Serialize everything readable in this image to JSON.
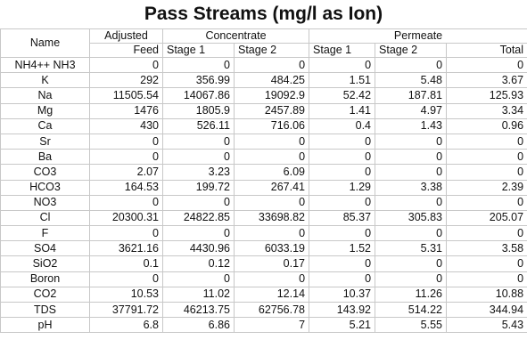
{
  "title": "Pass Streams (mg/l as Ion)",
  "table": {
    "header_top": [
      "Name",
      "Adjusted",
      "Concentrate",
      "Permeate"
    ],
    "header_sub": [
      "Feed",
      "Stage 1",
      "Stage 2",
      "Stage 1",
      "Stage 2",
      "Total"
    ],
    "rows": [
      [
        "NH4++ NH3",
        "0",
        "0",
        "0",
        "0",
        "0",
        "0"
      ],
      [
        "K",
        "292",
        "356.99",
        "484.25",
        "1.51",
        "5.48",
        "3.67"
      ],
      [
        "Na",
        "11505.54",
        "14067.86",
        "19092.9",
        "52.42",
        "187.81",
        "125.93"
      ],
      [
        "Mg",
        "1476",
        "1805.9",
        "2457.89",
        "1.41",
        "4.97",
        "3.34"
      ],
      [
        "Ca",
        "430",
        "526.11",
        "716.06",
        "0.4",
        "1.43",
        "0.96"
      ],
      [
        "Sr",
        "0",
        "0",
        "0",
        "0",
        "0",
        "0"
      ],
      [
        "Ba",
        "0",
        "0",
        "0",
        "0",
        "0",
        "0"
      ],
      [
        "CO3",
        "2.07",
        "3.23",
        "6.09",
        "0",
        "0",
        "0"
      ],
      [
        "HCO3",
        "164.53",
        "199.72",
        "267.41",
        "1.29",
        "3.38",
        "2.39"
      ],
      [
        "NO3",
        "0",
        "0",
        "0",
        "0",
        "0",
        "0"
      ],
      [
        "Cl",
        "20300.31",
        "24822.85",
        "33698.82",
        "85.37",
        "305.83",
        "205.07"
      ],
      [
        "F",
        "0",
        "0",
        "0",
        "0",
        "0",
        "0"
      ],
      [
        "SO4",
        "3621.16",
        "4430.96",
        "6033.19",
        "1.52",
        "5.31",
        "3.58"
      ],
      [
        "SiO2",
        "0.1",
        "0.12",
        "0.17",
        "0",
        "0",
        "0"
      ],
      [
        "Boron",
        "0",
        "0",
        "0",
        "0",
        "0",
        "0"
      ],
      [
        "CO2",
        "10.53",
        "11.02",
        "12.14",
        "10.37",
        "11.26",
        "10.88"
      ],
      [
        "TDS",
        "37791.72",
        "46213.75",
        "62756.78",
        "143.92",
        "514.22",
        "344.94"
      ],
      [
        "pH",
        "6.8",
        "6.86",
        "7",
        "5.21",
        "5.55",
        "5.43"
      ]
    ]
  }
}
